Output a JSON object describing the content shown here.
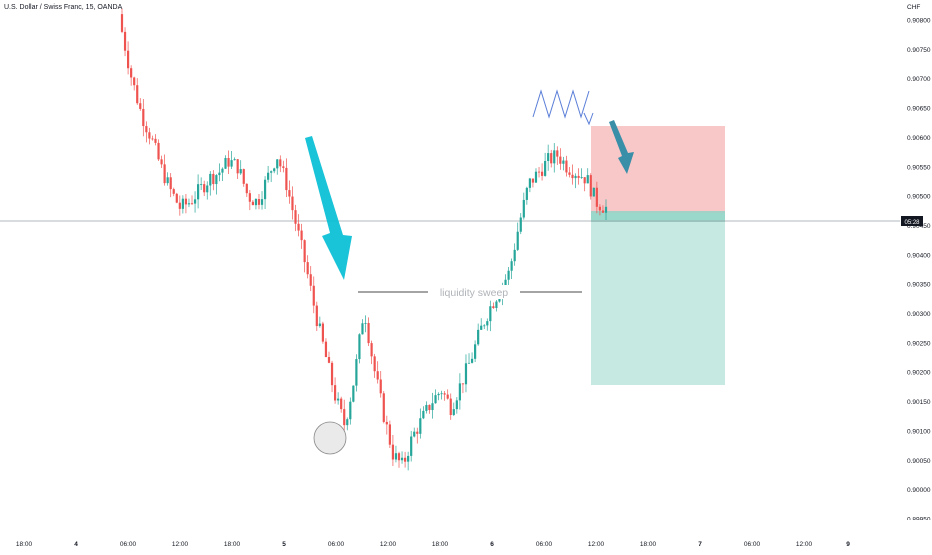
{
  "chart": {
    "symbol_title": "U.S. Dollar / Swiss Franc, 15, OANDA",
    "currency": "CHF",
    "current_price_badge": "05:28"
  },
  "chart_data": {
    "type": "candlestick",
    "price_ticks": [
      "0.90800",
      "0.90750",
      "0.90700",
      "0.90650",
      "0.90600",
      "0.90550",
      "0.90500",
      "0.90450",
      "0.90400",
      "0.90350",
      "0.90300",
      "0.90250",
      "0.90200",
      "0.90150",
      "0.90100",
      "0.90050",
      "0.90000",
      "0.89950"
    ],
    "ylim": [
      0.8994,
      0.9082
    ],
    "time_labels": [
      "18:00",
      "4",
      "06:00",
      "12:00",
      "18:00",
      "5",
      "06:00",
      "12:00",
      "18:00",
      "6",
      "06:00",
      "12:00",
      "18:00",
      "7",
      "06:00",
      "12:00",
      "9"
    ],
    "bold_time_labels": [
      "4",
      "5",
      "6",
      "7",
      "9"
    ],
    "colors": {
      "up": "#26a69a",
      "down": "#ef5350",
      "arrow": "#00bcd4",
      "stop_zone": "#f8c5c6",
      "target_zone": "#c3e8e0"
    },
    "annotations": {
      "liquidity_sweep_label": "liquidity sweep"
    },
    "ohlc_path_closes": [
      0.9078,
      0.907,
      0.9064,
      0.906,
      0.9055,
      0.9051,
      0.9048,
      0.9049,
      0.9051,
      0.9053,
      0.9054,
      0.9056,
      0.9055,
      0.905,
      0.9049,
      0.9053,
      0.9057,
      0.9052,
      0.9045,
      0.9038,
      0.903,
      0.9023,
      0.9016,
      0.9011,
      0.9019,
      0.9031,
      0.9021,
      0.9013,
      0.9006,
      0.9004,
      0.9009,
      0.9012,
      0.9015,
      0.9017,
      0.9014,
      0.9018,
      0.9022,
      0.9027,
      0.9031,
      0.9034,
      0.9037,
      0.9045,
      0.9052,
      0.9054,
      0.9056,
      0.9057,
      0.9055,
      0.9054,
      0.9053,
      0.9049,
      0.9048
    ]
  }
}
